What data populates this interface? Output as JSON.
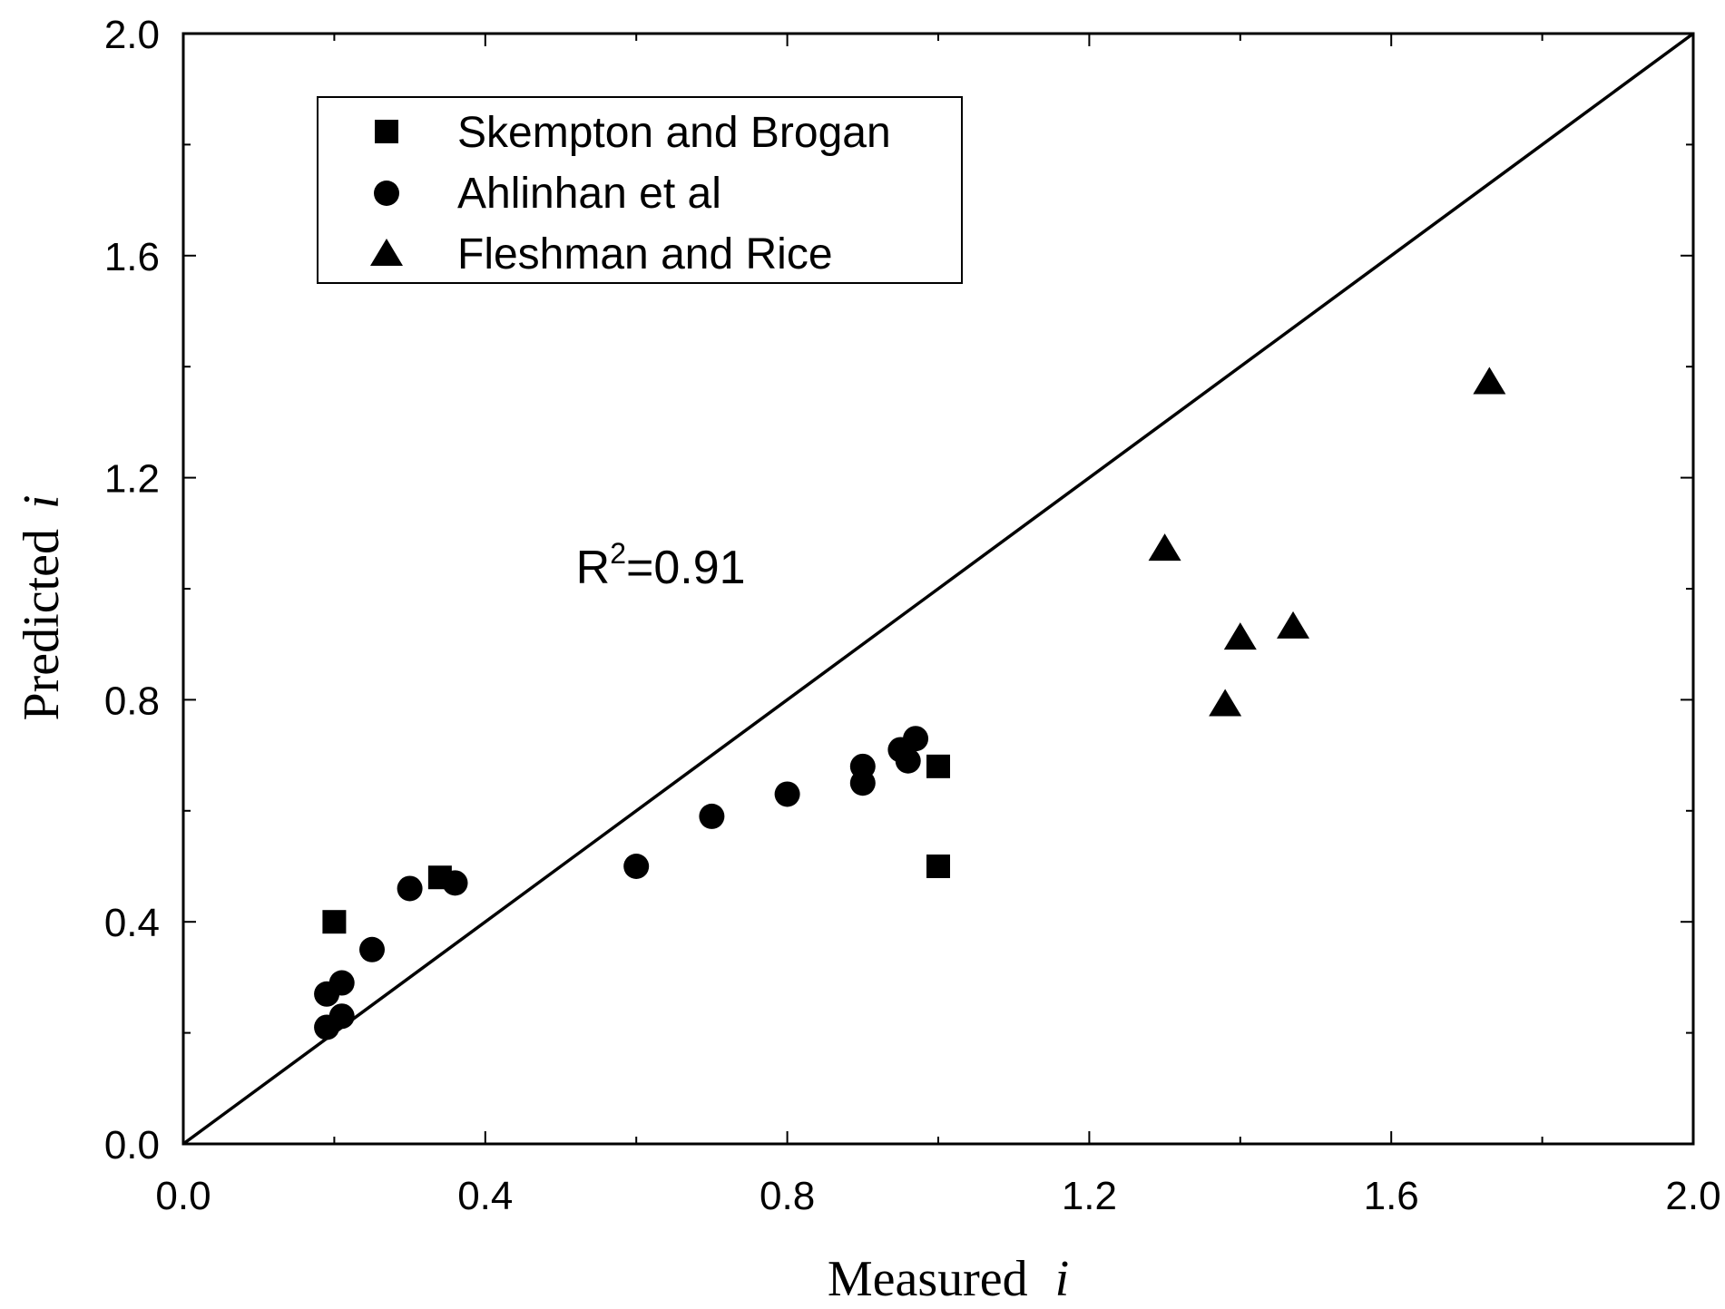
{
  "chart_data": {
    "type": "scatter",
    "title": "",
    "xlabel": "Measured",
    "ylabel": "Predicted",
    "axis_var": "i",
    "xlim": [
      0.0,
      2.0
    ],
    "ylim": [
      0.0,
      2.0
    ],
    "x_ticks": [
      "0.0",
      "0.4",
      "0.8",
      "1.2",
      "1.6",
      "2.0"
    ],
    "y_ticks": [
      "0.0",
      "0.4",
      "0.8",
      "1.2",
      "1.6",
      "2.0"
    ],
    "x_tick_values": [
      0.0,
      0.4,
      0.8,
      1.2,
      1.6,
      2.0
    ],
    "y_tick_values": [
      0.0,
      0.4,
      0.8,
      1.2,
      1.6,
      2.0
    ],
    "minor_step": 0.2,
    "reference_line": {
      "name": "1:1 line",
      "from": [
        0,
        0
      ],
      "to": [
        2.0,
        2.0
      ]
    },
    "annotation": {
      "base": "R",
      "sup": "2",
      "rest": "=0.91",
      "at": [
        0.52,
        1.01
      ]
    },
    "series": [
      {
        "name": "Skempton and Brogan",
        "marker": "square",
        "points": [
          [
            0.2,
            0.4
          ],
          [
            0.34,
            0.48
          ],
          [
            1.0,
            0.68
          ],
          [
            1.0,
            0.5
          ]
        ]
      },
      {
        "name": "Ahlinhan et al",
        "marker": "circle",
        "points": [
          [
            0.19,
            0.27
          ],
          [
            0.21,
            0.29
          ],
          [
            0.19,
            0.21
          ],
          [
            0.21,
            0.23
          ],
          [
            0.25,
            0.35
          ],
          [
            0.3,
            0.46
          ],
          [
            0.36,
            0.47
          ],
          [
            0.6,
            0.5
          ],
          [
            0.7,
            0.59
          ],
          [
            0.8,
            0.63
          ],
          [
            0.9,
            0.68
          ],
          [
            0.9,
            0.65
          ],
          [
            0.95,
            0.71
          ],
          [
            0.97,
            0.73
          ],
          [
            0.96,
            0.69
          ]
        ]
      },
      {
        "name": "Fleshman and Rice",
        "marker": "triangle",
        "points": [
          [
            1.3,
            1.07
          ],
          [
            1.38,
            0.79
          ],
          [
            1.4,
            0.91
          ],
          [
            1.47,
            0.93
          ],
          [
            1.73,
            1.37
          ]
        ]
      }
    ],
    "legend": [
      "Skempton and Brogan",
      "Ahlinhan et al",
      "Fleshman and Rice"
    ],
    "legend_position": "top-left",
    "grid": false,
    "color": "#000000"
  }
}
